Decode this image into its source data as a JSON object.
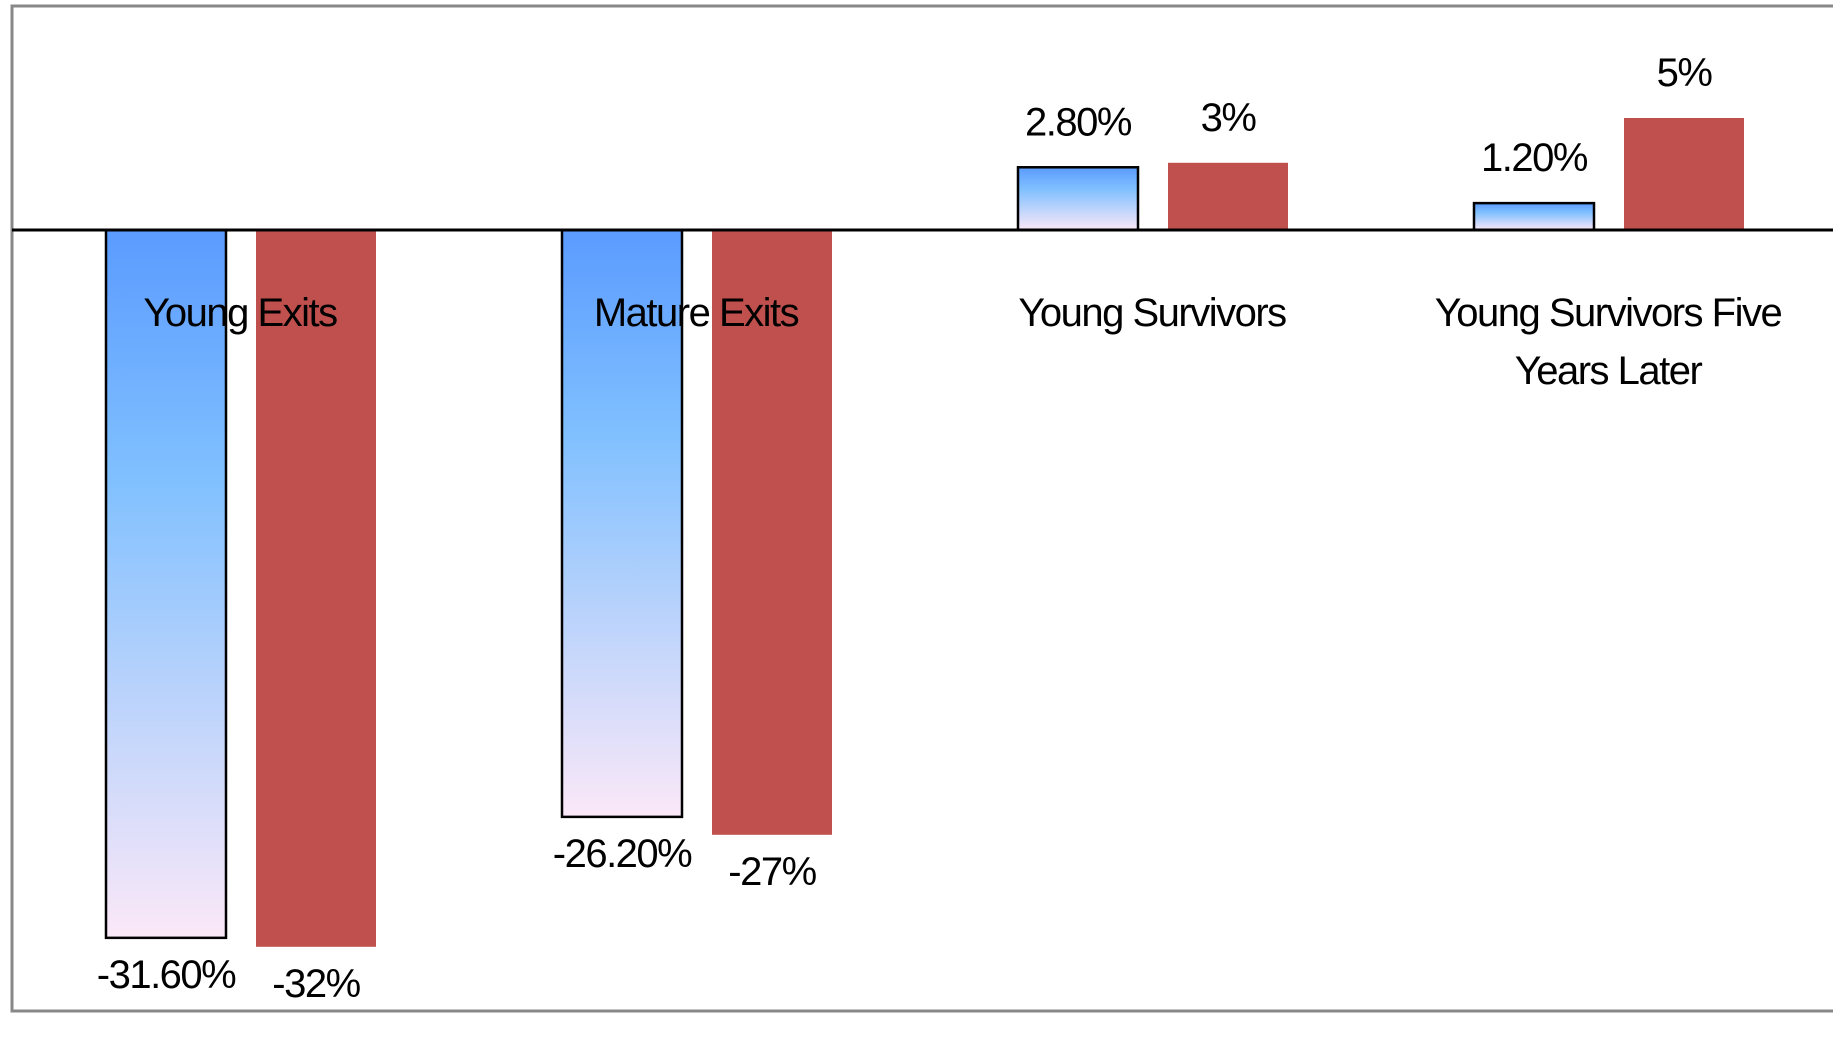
{
  "chart_data": {
    "type": "bar",
    "categories": [
      "Young Exits",
      "Mature Exits",
      "Young Survivors",
      "Young Survivors Five Years Later"
    ],
    "series": [
      {
        "color": "#5b9bff",
        "values": [
          -31.6,
          -26.2,
          2.8,
          1.2
        ],
        "value_labels": [
          "-31.60%",
          "-26.20%",
          "2.80%",
          "1.20%"
        ]
      },
      {
        "color": "#c0504d",
        "values": [
          -32,
          -27,
          3,
          5
        ],
        "value_labels": [
          "-32%",
          "-27%",
          "3%",
          "5%"
        ]
      }
    ]
  }
}
